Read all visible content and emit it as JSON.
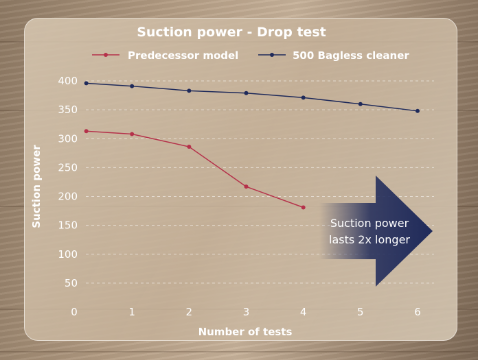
{
  "chart_data": {
    "type": "line",
    "title": "Suction power - Drop test",
    "xlabel": "Number of tests",
    "ylabel": "Suction power",
    "x_ticks": [
      0,
      1,
      2,
      3,
      4,
      5,
      6
    ],
    "y_ticks": [
      50,
      100,
      150,
      200,
      250,
      300,
      350,
      400
    ],
    "xlim": [
      0,
      6
    ],
    "ylim": [
      0,
      400
    ],
    "grid": "horizontal dashed",
    "legend_position": "top",
    "series": [
      {
        "name": "Predecessor model",
        "color": "#b5314a",
        "points": [
          {
            "x": 0.2,
            "y": 313
          },
          {
            "x": 1,
            "y": 308
          },
          {
            "x": 2,
            "y": 286
          },
          {
            "x": 3,
            "y": 217
          },
          {
            "x": 4,
            "y": 181
          }
        ]
      },
      {
        "name": "500 Bagless cleaner",
        "color": "#1f2a5a",
        "points": [
          {
            "x": 0.2,
            "y": 396
          },
          {
            "x": 1,
            "y": 391
          },
          {
            "x": 2,
            "y": 383
          },
          {
            "x": 3,
            "y": 379
          },
          {
            "x": 4,
            "y": 371
          },
          {
            "x": 5,
            "y": 360
          },
          {
            "x": 6,
            "y": 348
          }
        ]
      }
    ],
    "annotation": {
      "lines": [
        "Suction power",
        "lasts 2x longer"
      ],
      "arrow_color": "#1f2a5a"
    }
  }
}
